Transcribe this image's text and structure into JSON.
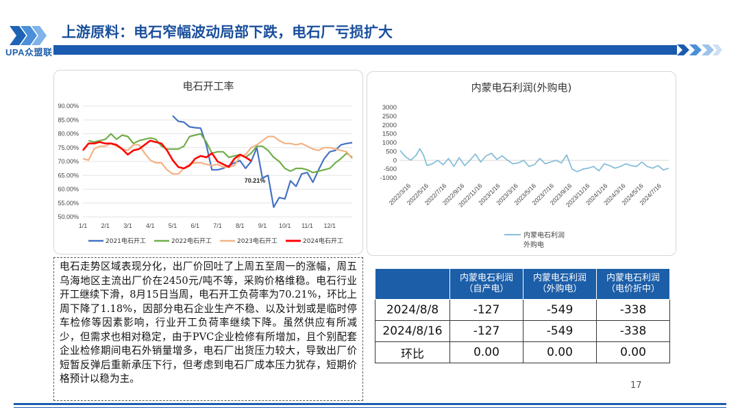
{
  "header": {
    "logo_text": "UPA众盟联",
    "title": "上游原料：电石窄幅波动局部下跌，电石厂亏损扩大",
    "page_number": "17",
    "colors": {
      "brand_blue": "#1a5bb0",
      "title_blue": "#1a4f9c",
      "table_header": "#1c5ea8"
    }
  },
  "text_block": "电石走势区域表现分化，出厂价回吐了上周五至周一的涨幅，周五乌海地区主流出厂价在2450元/吨不等，采购价格维稳。电石行业开工继续下滑，8月15日当周，电石开工负荷率为70.21%，环比上周下降了1.18%，因部分电石企业生产不稳、以及计划或是临时停车检修等因素影响，行业开工负荷率继续下降。虽然供应有所减少，但需求也相对稳定，由于PVC企业检修有所增加，且个别配套企业检修期间电石外销量增多，电石厂出货压力较大，导致出厂价短暂反弹后重新承压下行，但考虑到电石厂成本压力犹存，短期价格预计以稳为主。",
  "table": {
    "headers": [
      "",
      "内蒙电石利润\n（自产电）",
      "内蒙电石利润\n（外购电）",
      "内蒙电石利润\n（电价折中）"
    ],
    "rows": [
      [
        "2024/8/8",
        "-127",
        "-549",
        "-338"
      ],
      [
        "2024/8/16",
        "-127",
        "-549",
        "-338"
      ],
      [
        "环比",
        "0.00",
        "0.00",
        "0.00"
      ]
    ]
  },
  "chart_data": [
    {
      "type": "line",
      "title": "电石开工率",
      "x_ticks": [
        "1/1",
        "2/1",
        "3/1",
        "4/1",
        "5/1",
        "6/1",
        "7/1",
        "8/1",
        "9/1",
        "10/1",
        "11/1",
        "12/1"
      ],
      "y_ticks": [
        "50.00%",
        "55.00%",
        "60.00%",
        "65.00%",
        "70.00%",
        "75.00%",
        "80.00%",
        "85.00%",
        "90.00%"
      ],
      "ylim": [
        50,
        90
      ],
      "annotation": "70.21%",
      "legend_position": "bottom",
      "series": [
        {
          "name": "2021电石开工",
          "color": "#4472c4",
          "x": [
            5.0,
            5.25,
            5.5,
            5.75,
            6.0,
            6.25,
            6.5,
            6.75,
            7.0,
            7.25,
            7.5,
            7.75,
            8.0,
            8.25,
            8.5,
            8.75,
            9.0,
            9.25,
            9.5,
            9.75,
            10.0,
            10.25,
            10.5,
            10.75,
            11.0,
            11.25,
            11.5,
            11.75,
            12.0,
            12.25,
            12.5,
            12.75,
            13.0
          ],
          "y": [
            86.5,
            84.5,
            84.2,
            82.5,
            82.2,
            82.0,
            76.0,
            67.0,
            67.0,
            67.5,
            68.5,
            69.5,
            70.3,
            67.5,
            70.0,
            75.0,
            64.0,
            65.0,
            53.5,
            57.0,
            56.5,
            63.0,
            61.0,
            65.5,
            66.0,
            62.5,
            67.0,
            71.0,
            73.5,
            74.0,
            76.0,
            76.5,
            76.8
          ]
        },
        {
          "name": "2022电石开工",
          "color": "#70ad47",
          "x": [
            1.25,
            1.5,
            1.75,
            2.0,
            2.25,
            2.5,
            2.75,
            3.0,
            3.25,
            3.5,
            3.75,
            4.0,
            4.25,
            4.5,
            4.75,
            5.0,
            5.25,
            5.5,
            5.75,
            6.0,
            6.25,
            6.5,
            6.75,
            7.0,
            7.25,
            7.5,
            7.75,
            8.0,
            8.25,
            8.5,
            8.75,
            9.0,
            9.25,
            9.5,
            9.75,
            10.0,
            10.25,
            10.5,
            10.75,
            11.0,
            11.25,
            11.5,
            11.75,
            12.0,
            12.25,
            12.5,
            12.75,
            13.0
          ],
          "y": [
            77.5,
            77.0,
            77.5,
            78.0,
            80.0,
            78.0,
            79.5,
            79.0,
            76.5,
            77.5,
            78.0,
            78.5,
            78.0,
            75.5,
            74.5,
            74.5,
            74.5,
            75.5,
            79.0,
            79.5,
            80.0,
            77.0,
            73.0,
            73.5,
            73.5,
            71.5,
            72.0,
            72.5,
            71.5,
            73.0,
            75.5,
            75.5,
            74.0,
            71.5,
            70.0,
            67.5,
            66.5,
            67.5,
            67.5,
            67.0,
            66.0,
            66.5,
            67.0,
            67.5,
            69.5,
            71.0,
            73.0,
            71.5
          ]
        },
        {
          "name": "2023电石开工",
          "color": "#f4b183",
          "x": [
            1.0,
            1.25,
            1.5,
            1.75,
            2.0,
            2.25,
            2.5,
            2.75,
            3.0,
            3.25,
            3.5,
            3.75,
            4.0,
            4.25,
            4.5,
            4.75,
            5.0,
            5.25,
            5.5,
            5.75,
            6.0,
            6.25,
            6.5,
            6.75,
            7.0,
            7.25,
            7.5,
            7.75,
            8.0,
            8.25,
            8.5,
            8.75,
            9.0,
            9.25,
            9.5,
            9.75,
            10.0,
            10.25,
            10.5,
            10.75,
            11.0,
            11.25,
            11.5,
            11.75,
            12.0,
            12.25,
            12.5,
            12.75,
            13.0
          ],
          "y": [
            71.0,
            70.5,
            74.5,
            75.5,
            75.5,
            76.5,
            75.5,
            74.5,
            74.0,
            76.0,
            76.0,
            73.0,
            70.5,
            69.5,
            69.5,
            67.0,
            65.5,
            65.5,
            67.5,
            69.0,
            69.5,
            69.5,
            69.0,
            68.5,
            69.0,
            68.0,
            68.0,
            68.5,
            72.0,
            72.5,
            75.0,
            76.0,
            77.5,
            79.0,
            79.0,
            77.5,
            76.5,
            76.5,
            76.0,
            76.5,
            75.5,
            74.5,
            74.0,
            75.0,
            75.0,
            74.5,
            74.0,
            73.5,
            71.0
          ]
        },
        {
          "name": "2024电石开工",
          "color": "#ff0000",
          "x": [
            1.0,
            1.25,
            1.5,
            1.75,
            2.0,
            2.25,
            2.5,
            2.75,
            3.0,
            3.25,
            3.5,
            3.75,
            4.0,
            4.25,
            4.5,
            4.75,
            5.0,
            5.25,
            5.5,
            5.75,
            6.0,
            6.25,
            6.5,
            6.75,
            7.0,
            7.25,
            7.5,
            7.75,
            8.0,
            8.25,
            8.5
          ],
          "y": [
            74.0,
            76.5,
            76.5,
            77.0,
            76.5,
            76.5,
            76.0,
            74.5,
            72.5,
            74.0,
            74.5,
            76.0,
            77.5,
            77.0,
            76.5,
            74.0,
            70.5,
            68.0,
            67.5,
            68.5,
            71.0,
            72.0,
            71.5,
            73.0,
            70.0,
            69.0,
            68.0,
            71.0,
            72.5,
            71.5,
            70.2
          ]
        }
      ]
    },
    {
      "type": "line",
      "title": "内蒙电石利润(外购电)",
      "y_ticks": [
        "3000",
        "2500",
        "2000",
        "1500",
        "1000",
        "500",
        "0",
        "-500",
        "-1000"
      ],
      "ylim": [
        -1000,
        3000
      ],
      "x_ticks": [
        "2022/3/16",
        "2022/5/16",
        "2022/7/16",
        "2022/9/16",
        "2022/11/16",
        "2023/1/16",
        "2023/3/16",
        "2023/5/16",
        "2023/7/16",
        "2023/9/16",
        "2023/11/16",
        "2024/1/16",
        "2024/3/16",
        "2024/5/16",
        "2024/7/16"
      ],
      "legend_position": "bottom",
      "series": [
        {
          "name": "内蒙电石利润外购电",
          "color": "#87bdd8",
          "x": [
            0.0,
            0.3,
            0.6,
            0.9,
            1.1,
            1.3,
            1.5,
            1.8,
            2.1,
            2.4,
            2.7,
            3.0,
            3.3,
            3.6,
            3.9,
            4.2,
            4.5,
            4.8,
            5.1,
            5.4,
            5.7,
            6.0,
            6.3,
            6.6,
            6.9,
            7.2,
            7.5,
            7.8,
            8.1,
            8.4,
            8.7,
            9.0,
            9.3,
            9.6,
            9.9,
            10.2,
            10.5,
            10.8,
            11.1,
            11.4,
            11.7,
            12.0,
            12.3,
            12.6,
            12.9,
            13.2,
            13.5,
            13.8,
            14.1,
            14.4,
            14.7,
            15.0
          ],
          "y": [
            550,
            200,
            0,
            300,
            650,
            300,
            -300,
            -200,
            0,
            -250,
            100,
            -350,
            150,
            -300,
            0,
            350,
            -100,
            250,
            400,
            50,
            250,
            0,
            -200,
            -150,
            0,
            -350,
            -250,
            100,
            -200,
            -100,
            0,
            -150,
            300,
            -500,
            -650,
            -500,
            -450,
            -350,
            -600,
            -200,
            -300,
            -450,
            -350,
            -200,
            -300,
            -350,
            -100,
            -350,
            -450,
            -300,
            -550,
            -450
          ]
        }
      ]
    }
  ]
}
